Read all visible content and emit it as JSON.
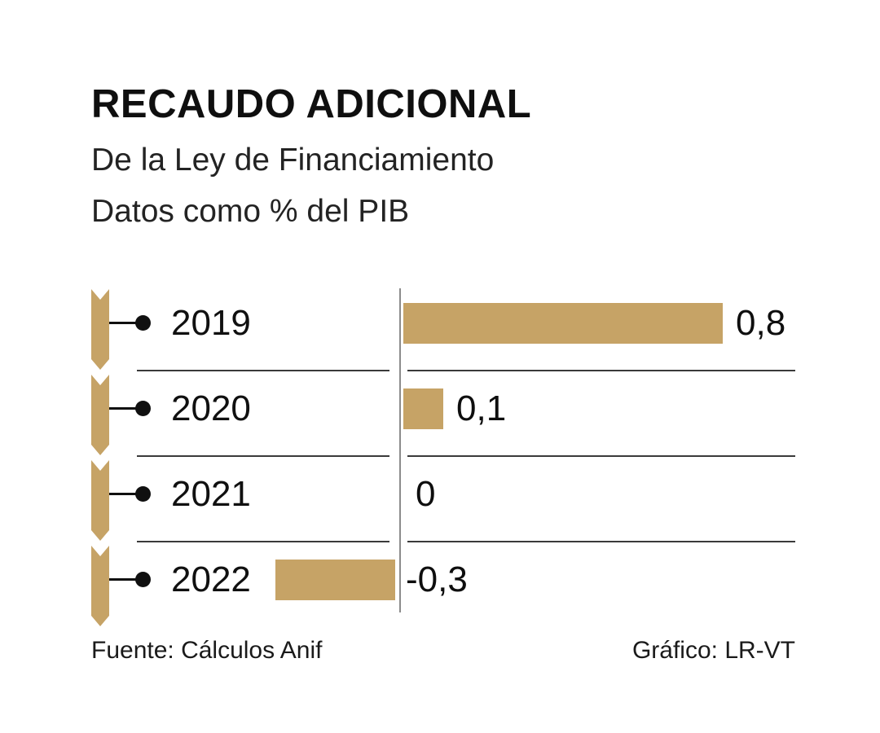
{
  "header": {
    "title": "RECAUDO ADICIONAL",
    "subtitle_line1": "De la Ley de Financiamiento",
    "subtitle_line2": "Datos como % del PIB"
  },
  "footer": {
    "source": "Fuente: Cálculos Anif",
    "credit": "Gráfico: LR-VT"
  },
  "colors": {
    "bar": "#c6a366",
    "axis": "#8c8c8c",
    "text": "#101010"
  },
  "chart_data": {
    "type": "bar",
    "orientation": "horizontal",
    "title": "RECAUDO ADICIONAL",
    "subtitle": "De la Ley de Financiamiento",
    "unit_label": "Datos como % del PIB",
    "categories": [
      "2019",
      "2020",
      "2021",
      "2022"
    ],
    "values": [
      0.8,
      0.1,
      0,
      -0.3
    ],
    "value_labels": [
      "0,8",
      "0,1",
      "0",
      "-0,3"
    ],
    "xlim": [
      -0.4,
      1.0
    ],
    "baseline": 0,
    "grid": false,
    "legend": false
  }
}
